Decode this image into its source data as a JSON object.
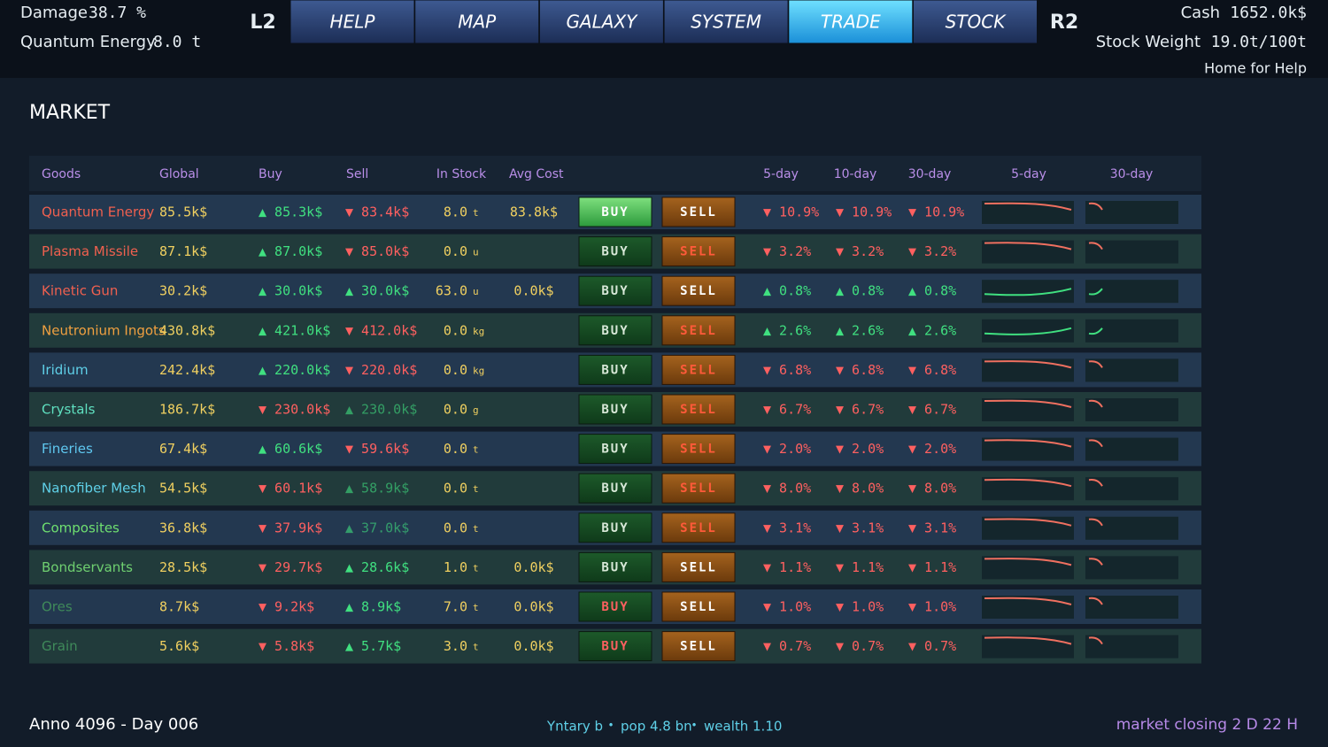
{
  "header": {
    "damage_label": "Damage",
    "damage_value": "38.7 %",
    "energy_label": "Quantum Energy",
    "energy_value": "8.0 t",
    "l2": "L2",
    "r2": "R2",
    "tabs": [
      "HELP",
      "MAP",
      "GALAXY",
      "SYSTEM",
      "TRADE",
      "STOCK"
    ],
    "active_tab": 4,
    "cash_label": "Cash",
    "cash_value": "1652.0k$",
    "weight_label": "Stock Weight",
    "weight_value": "19.0t/100t",
    "help": "Home for Help"
  },
  "title": "MARKET",
  "table": {
    "columns": [
      "Goods",
      "Global",
      "Buy",
      "Sell",
      "In Stock",
      "Avg Cost",
      "5-day",
      "10-day",
      "30-day",
      "5-day",
      "30-day"
    ],
    "buttons": {
      "buy": "BUY",
      "sell": "SELL"
    },
    "rows": [
      {
        "name": "Quantum Energy",
        "color": "#f0604f",
        "global": "85.5k$",
        "buy": "▲ 85.3k$",
        "sell": "▼ 83.4k$",
        "stock": "8.0",
        "unit": "t",
        "avg": "83.8k$",
        "d5": "▼ 10.9%",
        "d10": "▼ 10.9%",
        "d30": "▼ 10.9%",
        "buy_highlight": true
      },
      {
        "name": "Plasma Missile",
        "color": "#f0604f",
        "global": "87.1k$",
        "buy": "▲ 87.0k$",
        "sell": "▼ 85.0k$",
        "stock": "0.0",
        "unit": "u",
        "d5": "▼ 3.2%",
        "d10": "▼ 3.2%",
        "d30": "▼ 3.2%"
      },
      {
        "name": "Kinetic Gun",
        "color": "#f0604f",
        "global": "30.2k$",
        "buy": "▲ 30.0k$",
        "sell": "▲ 30.0k$",
        "stock": "63.0",
        "unit": "u",
        "avg": "0.0k$",
        "d5": "▲ 0.8%",
        "d10": "▲ 0.8%",
        "d30": "▲ 0.8%"
      },
      {
        "name": "Neutronium Ingots",
        "color": "#f0a040",
        "global": "430.8k$",
        "buy": "▲ 421.0k$",
        "sell": "▼ 412.0k$",
        "stock": "0.0",
        "unit": "kg",
        "d5": "▲ 2.6%",
        "d10": "▲ 2.6%",
        "d30": "▲ 2.6%"
      },
      {
        "name": "Iridium",
        "color": "#5fd0e8",
        "global": "242.4k$",
        "buy": "▲ 220.0k$",
        "sell": "▼ 220.0k$",
        "stock": "0.0",
        "unit": "kg",
        "d5": "▼ 6.8%",
        "d10": "▼ 6.8%",
        "d30": "▼ 6.8%"
      },
      {
        "name": "Crystals",
        "color": "#5fe0c0",
        "global": "186.7k$",
        "buy": "▼ 230.0k$",
        "sell": "▲ 230.0k$",
        "stock": "0.0",
        "unit": "g",
        "d5": "▼ 6.7%",
        "d10": "▼ 6.7%",
        "d30": "▼ 6.7%"
      },
      {
        "name": "Fineries",
        "color": "#5fc8f0",
        "global": "67.4k$",
        "buy": "▲ 60.6k$",
        "sell": "▼ 59.6k$",
        "stock": "0.0",
        "unit": "t",
        "d5": "▼ 2.0%",
        "d10": "▼ 2.0%",
        "d30": "▼ 2.0%"
      },
      {
        "name": "Nanofiber Mesh",
        "color": "#5fd0e8",
        "global": "54.5k$",
        "buy": "▼ 60.1k$",
        "sell": "▲ 58.9k$",
        "stock": "0.0",
        "unit": "t",
        "d5": "▼ 8.0%",
        "d10": "▼ 8.0%",
        "d30": "▼ 8.0%"
      },
      {
        "name": "Composites",
        "color": "#6fe070",
        "global": "36.8k$",
        "buy": "▼ 37.9k$",
        "sell": "▲ 37.0k$",
        "stock": "0.0",
        "unit": "t",
        "d5": "▼ 3.1%",
        "d10": "▼ 3.1%",
        "d30": "▼ 3.1%"
      },
      {
        "name": "Bondservants",
        "color": "#6fd070",
        "global": "28.5k$",
        "buy": "▼ 29.7k$",
        "sell": "▲ 28.6k$",
        "stock": "1.0",
        "unit": "t",
        "avg": "0.0k$",
        "d5": "▼ 1.1%",
        "d10": "▼ 1.1%",
        "d30": "▼ 1.1%"
      },
      {
        "name": "Ores",
        "color": "#3f8a5a",
        "global": "8.7k$",
        "buy": "▼ 9.2k$",
        "sell": "▲ 8.9k$",
        "stock": "7.0",
        "unit": "t",
        "avg": "0.0k$",
        "d5": "▼ 1.0%",
        "d10": "▼ 1.0%",
        "d30": "▼ 1.0%",
        "buy_disabled": true
      },
      {
        "name": "Grain",
        "color": "#3f8a5a",
        "global": "5.6k$",
        "buy": "▼ 5.8k$",
        "sell": "▲ 5.7k$",
        "stock": "3.0",
        "unit": "t",
        "avg": "0.0k$",
        "d5": "▼ 0.7%",
        "d10": "▼ 0.7%",
        "d30": "▼ 0.7%",
        "buy_disabled": true
      }
    ]
  },
  "footer": {
    "date": "Anno 4096 - Day 006",
    "location": "Yntary b",
    "pop": "pop 4.8 bn",
    "wealth": "wealth 1.10",
    "closing": "market closing 2 D 22 H"
  }
}
